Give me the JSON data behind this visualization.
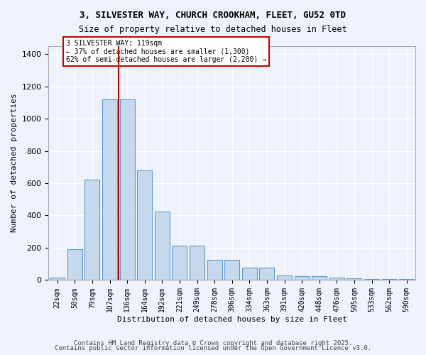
{
  "title_line1": "3, SILVESTER WAY, CHURCH CROOKHAM, FLEET, GU52 0TD",
  "title_line2": "Size of property relative to detached houses in Fleet",
  "xlabel": "Distribution of detached houses by size in Fleet",
  "ylabel": "Number of detached properties",
  "categories": [
    "22sqm",
    "50sqm",
    "79sqm",
    "107sqm",
    "136sqm",
    "164sqm",
    "192sqm",
    "221sqm",
    "249sqm",
    "278sqm",
    "306sqm",
    "334sqm",
    "363sqm",
    "391sqm",
    "420sqm",
    "448sqm",
    "476sqm",
    "505sqm",
    "533sqm",
    "562sqm",
    "590sqm"
  ],
  "values": [
    15,
    190,
    620,
    1120,
    1120,
    680,
    425,
    215,
    215,
    125,
    125,
    75,
    75,
    30,
    25,
    25,
    15,
    10,
    5,
    5,
    5
  ],
  "bar_color": "#c5d8ec",
  "bar_edge_color": "#5b9bd5",
  "background_color": "#eef2fb",
  "grid_color": "#ffffff",
  "red_line_x": 3.5,
  "annotation_title": "3 SILVESTER WAY: 119sqm",
  "annotation_line2": "← 37% of detached houses are smaller (1,300)",
  "annotation_line3": "62% of semi-detached houses are larger (2,200) →",
  "annotation_box_color": "#ffffff",
  "annotation_box_edge": "#cc0000",
  "red_line_color": "#cc0000",
  "ylim": [
    0,
    1450
  ],
  "yticks": [
    0,
    200,
    400,
    600,
    800,
    1000,
    1200,
    1400
  ],
  "footnote1": "Contains HM Land Registry data © Crown copyright and database right 2025.",
  "footnote2": "Contains public sector information licensed under the Open Government Licence v3.0."
}
